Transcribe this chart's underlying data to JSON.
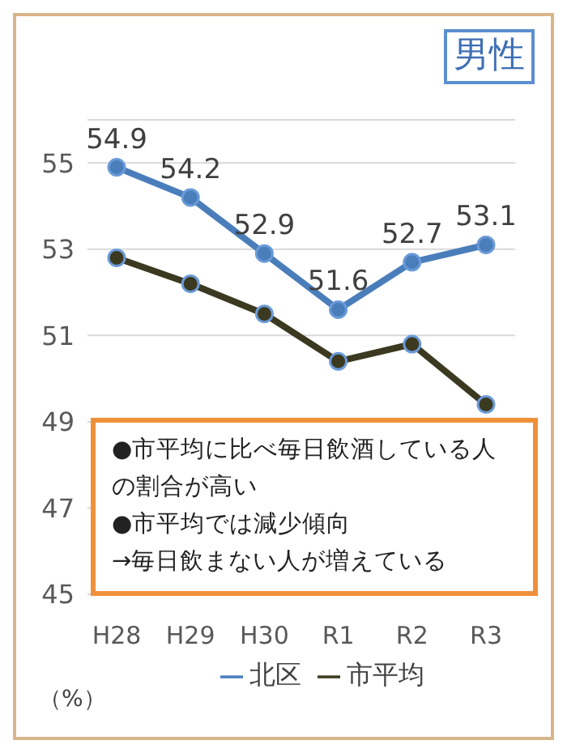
{
  "chart_data": {
    "type": "line",
    "title": "男性",
    "ylabel": "（%）",
    "categories": [
      "H28",
      "H29",
      "H30",
      "R1",
      "R2",
      "R3"
    ],
    "series": [
      {
        "name": "北区",
        "color": "#4a7ebb",
        "values": [
          54.9,
          54.2,
          52.9,
          51.6,
          52.7,
          53.1
        ],
        "value_labels": [
          "54.9",
          "54.2",
          "52.9",
          "51.6",
          "52.7",
          "53.1"
        ]
      },
      {
        "name": "市平均",
        "color": "#3b3920",
        "values": [
          52.8,
          52.2,
          51.5,
          50.4,
          50.8,
          49.4
        ]
      }
    ],
    "ylim": [
      45,
      56
    ],
    "yticks": [
      45,
      47,
      49,
      51,
      53,
      55
    ],
    "grid": "y",
    "legend": "bottom",
    "marker": "circle",
    "line_style": "solid",
    "annotations": [
      "●市平均に比べ毎日飲酒している人の割合が高い",
      "●市平均では減少傾向",
      "→毎日飲まない人が増えている"
    ]
  }
}
